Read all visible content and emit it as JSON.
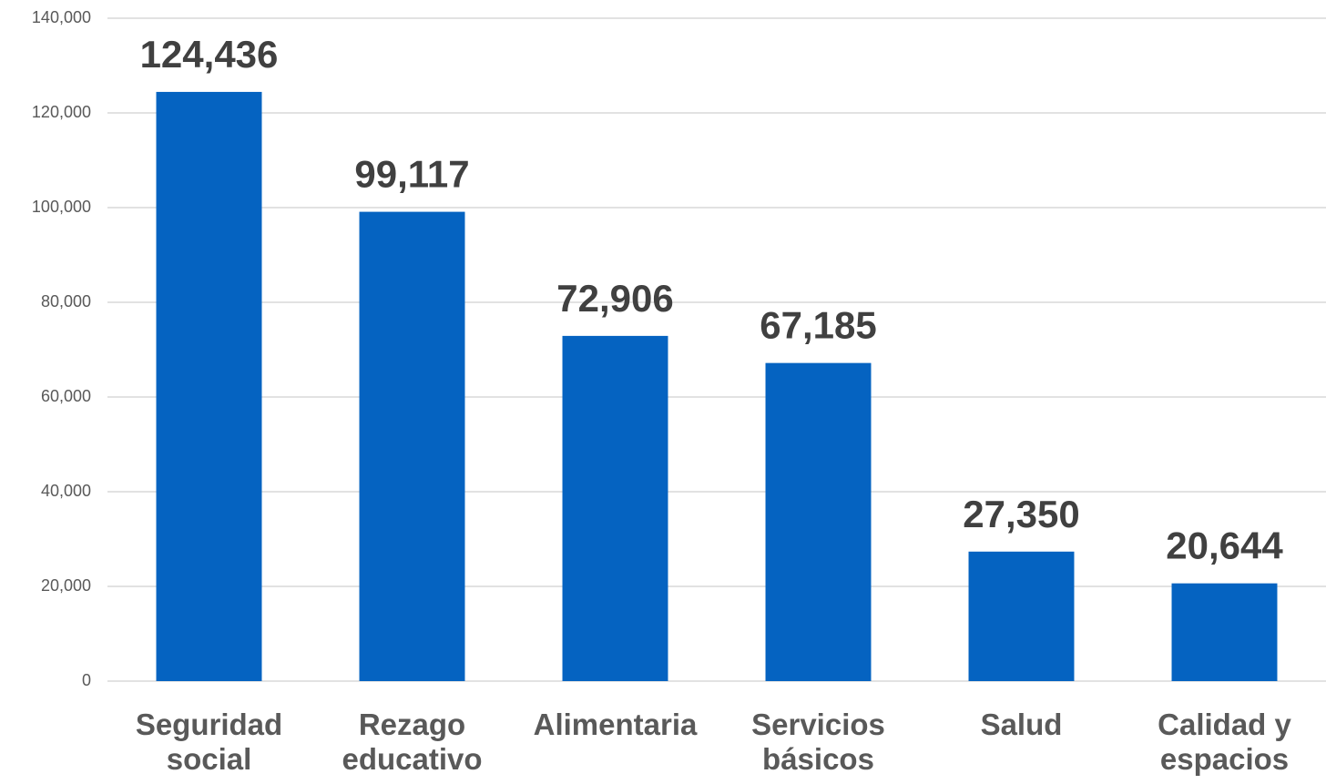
{
  "chart_data": {
    "type": "bar",
    "categories": [
      "Seguridad social",
      "Rezago educativo",
      "Alimentaria",
      "Servicios básicos",
      "Salud",
      "Calidad y espacios"
    ],
    "values": [
      124436,
      99117,
      72906,
      67185,
      27350,
      20644
    ],
    "value_labels": [
      "124,436",
      "99,117",
      "72,906",
      "67,185",
      "27,350",
      "20,644"
    ],
    "color": "#0563c1",
    "ylim": [
      0,
      140000
    ],
    "yticks": [
      0,
      {
        "value": 20000,
        "label": "20,000"
      },
      {
        "value": 40000,
        "label": "40,000"
      },
      {
        "value": 60000,
        "label": "60,000"
      },
      {
        "value": 80000,
        "label": "80,000"
      },
      {
        "value": 100000,
        "label": "100,000"
      },
      {
        "value": 120000,
        "label": "120,000"
      },
      {
        "value": 140000,
        "label": "140,000"
      }
    ],
    "grid": true
  }
}
